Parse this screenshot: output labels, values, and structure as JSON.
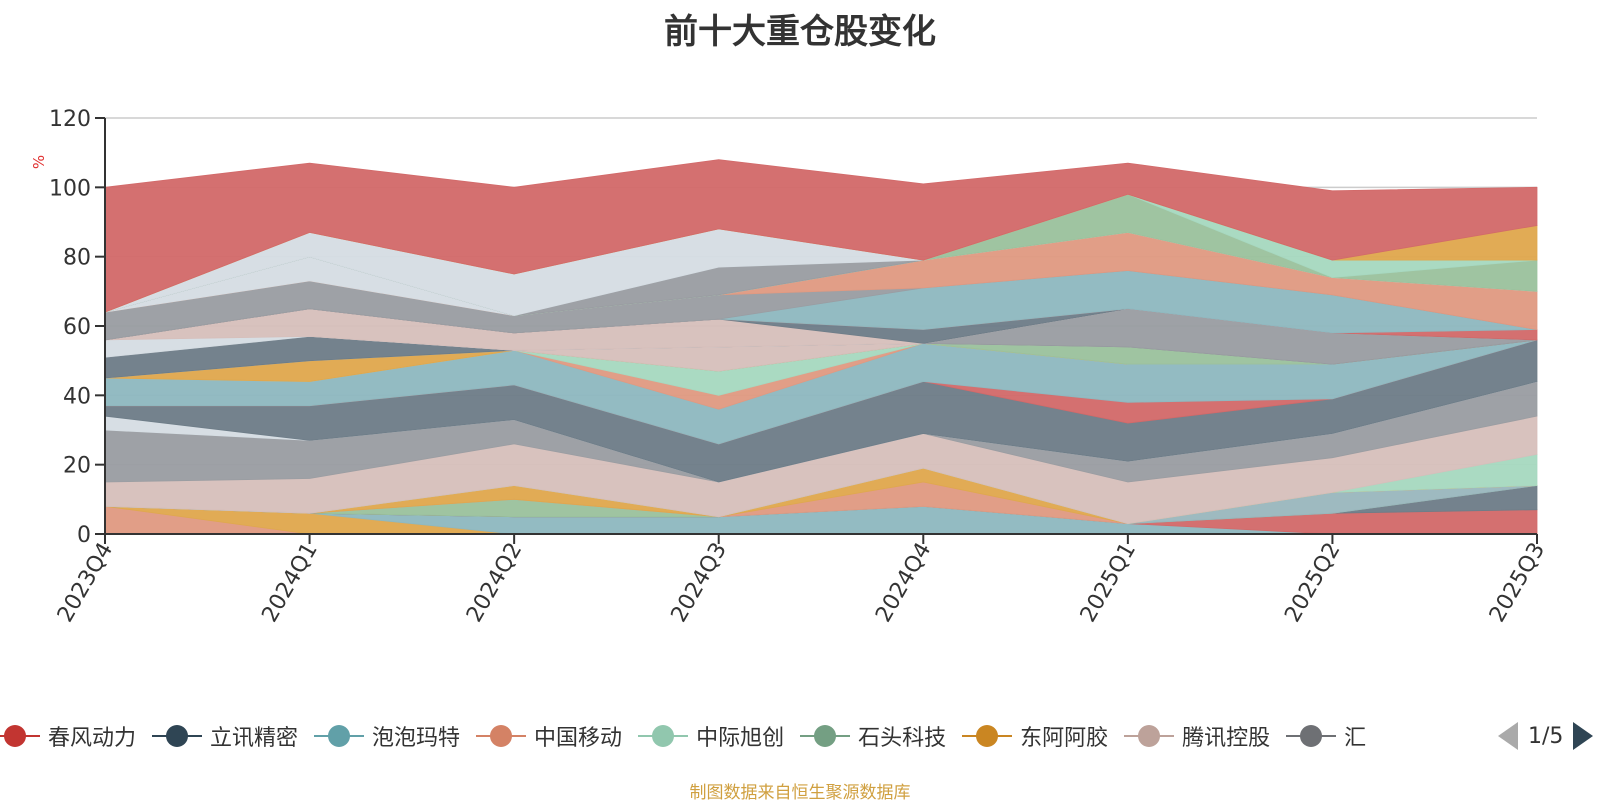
{
  "chart_data": {
    "type": "area",
    "stacked": true,
    "title": "前十大重仓股变化",
    "ylabel": "%",
    "ylim": [
      0,
      120
    ],
    "yticks": [
      0,
      20,
      40,
      60,
      80,
      100,
      120
    ],
    "grid": true,
    "categories": [
      "2023Q4",
      "2024Q1",
      "2024Q2",
      "2024Q3",
      "2024Q4",
      "2025Q1",
      "2025Q2",
      "2025Q3"
    ],
    "layers": [
      {
        "color": "#e09a82",
        "values": [
          8,
          0,
          0,
          0,
          0,
          0,
          0,
          0
        ]
      },
      {
        "color": "#e0a84e",
        "values": [
          0,
          6,
          0,
          0,
          0,
          0,
          0,
          0
        ]
      },
      {
        "color": "#8fb8bf",
        "values": [
          0,
          0,
          5,
          5,
          8,
          3,
          0,
          0
        ]
      },
      {
        "color": "#d26a6a",
        "values": [
          0,
          0,
          0,
          0,
          0,
          0,
          6,
          7
        ]
      },
      {
        "color": "#6e7d88",
        "values": [
          0,
          0,
          0,
          0,
          0,
          0,
          0,
          7
        ]
      },
      {
        "color": "#9bc29d",
        "values": [
          0,
          0,
          5,
          0,
          0,
          0,
          0,
          0
        ]
      },
      {
        "color": "#9ab7bd",
        "values": [
          0,
          0,
          0,
          0,
          0,
          0,
          6,
          0
        ]
      },
      {
        "color": "#e09a82",
        "values": [
          0,
          0,
          0,
          0,
          7,
          0,
          0,
          0
        ]
      },
      {
        "color": "#e0a84e",
        "values": [
          0,
          0,
          4,
          0,
          4,
          0,
          0,
          0
        ]
      },
      {
        "color": "#a7d8c0",
        "values": [
          0,
          0,
          0,
          0,
          0,
          0,
          0,
          9
        ]
      },
      {
        "color": "#d6bfbb",
        "values": [
          7,
          10,
          12,
          10,
          10,
          12,
          10,
          11
        ]
      },
      {
        "color": "#9a9da2",
        "values": [
          15,
          11,
          7,
          0,
          0,
          6,
          7,
          10
        ]
      },
      {
        "color": "#d5dde3",
        "values": [
          4,
          0,
          0,
          0,
          0,
          0,
          0,
          0
        ]
      },
      {
        "color": "#6e7d88",
        "values": [
          3,
          10,
          10,
          11,
          15,
          11,
          10,
          12
        ]
      },
      {
        "color": "#d26a6a",
        "values": [
          0,
          0,
          0,
          0,
          0,
          6,
          0,
          0
        ]
      },
      {
        "color": "#8fb8bf",
        "values": [
          8,
          7,
          10,
          10,
          11,
          11,
          10,
          0
        ]
      },
      {
        "color": "#e09a82",
        "values": [
          0,
          0,
          0,
          4,
          0,
          0,
          0,
          0
        ]
      },
      {
        "color": "#a7d8c0",
        "values": [
          0,
          0,
          0,
          7,
          0,
          0,
          0,
          0
        ]
      },
      {
        "color": "#e0a84e",
        "values": [
          0,
          6,
          0,
          0,
          0,
          0,
          0,
          0
        ]
      },
      {
        "color": "#9bc29d",
        "values": [
          0,
          0,
          0,
          0,
          0,
          5,
          0,
          0
        ]
      },
      {
        "color": "#d6bfbb",
        "values": [
          0,
          0,
          0,
          7,
          0,
          0,
          0,
          0
        ]
      },
      {
        "color": "#6e7d88",
        "values": [
          6,
          7,
          0,
          0,
          0,
          0,
          0,
          0
        ]
      },
      {
        "color": "#9a9da2",
        "values": [
          0,
          0,
          0,
          0,
          0,
          11,
          9,
          0
        ]
      },
      {
        "color": "#d5dde3",
        "values": [
          5,
          0,
          0,
          0,
          0,
          0,
          0,
          0
        ]
      },
      {
        "color": "#d6bfbb",
        "values": [
          0,
          8,
          5,
          8,
          0,
          0,
          0,
          0
        ]
      },
      {
        "color": "#6e7d88",
        "values": [
          0,
          0,
          0,
          0,
          4,
          0,
          0,
          0
        ]
      },
      {
        "color": "#d26a6a",
        "values": [
          0,
          0,
          0,
          0,
          0,
          0,
          0,
          3
        ]
      },
      {
        "color": "#e09a82",
        "values": [
          0,
          0,
          0,
          0,
          0,
          0,
          0,
          0
        ]
      },
      {
        "color": "#8fb8bf",
        "values": [
          0,
          0,
          0,
          0,
          12,
          11,
          11,
          0
        ]
      },
      {
        "color": "#9a9da2",
        "values": [
          8,
          8,
          5,
          7,
          0,
          0,
          0,
          0
        ]
      },
      {
        "color": "#e09a82",
        "values": [
          0,
          0,
          0,
          0,
          8,
          11,
          5,
          11
        ]
      },
      {
        "color": "#d5dde3",
        "values": [
          0,
          7,
          0,
          0,
          0,
          0,
          0,
          0
        ]
      },
      {
        "color": "#9bc29d",
        "values": [
          0,
          0,
          0,
          0,
          0,
          11,
          0,
          9
        ]
      },
      {
        "color": "#a7d8c0",
        "values": [
          0,
          0,
          0,
          0,
          0,
          0,
          5,
          0
        ]
      },
      {
        "color": "#9a9da2",
        "values": [
          0,
          0,
          0,
          8,
          0,
          0,
          0,
          0
        ]
      },
      {
        "color": "#d5dde3",
        "values": [
          0,
          7,
          12,
          11,
          0,
          0,
          0,
          0
        ]
      },
      {
        "color": "#e0a84e",
        "values": [
          0,
          0,
          0,
          0,
          0,
          0,
          0,
          10
        ]
      },
      {
        "color": "#d26a6a",
        "values": [
          36,
          20,
          25,
          20,
          22,
          9,
          20,
          11
        ]
      }
    ],
    "legend": {
      "position": "bottom",
      "items": [
        {
          "name": "春风动力",
          "color": "#c23531"
        },
        {
          "name": "立讯精密",
          "color": "#2f4554"
        },
        {
          "name": "泡泡玛特",
          "color": "#61a0a8"
        },
        {
          "name": "中国移动",
          "color": "#d48265"
        },
        {
          "name": "中际旭创",
          "color": "#91c7ae"
        },
        {
          "name": "石头科技",
          "color": "#749f83"
        },
        {
          "name": "东阿阿胶",
          "color": "#ca8622"
        },
        {
          "name": "腾讯控股",
          "color": "#bda29a"
        },
        {
          "name": "汇",
          "color": "#6e7074"
        }
      ]
    }
  },
  "legend_pager": "1/5",
  "source_note": "制图数据来自恒生聚源数据库"
}
